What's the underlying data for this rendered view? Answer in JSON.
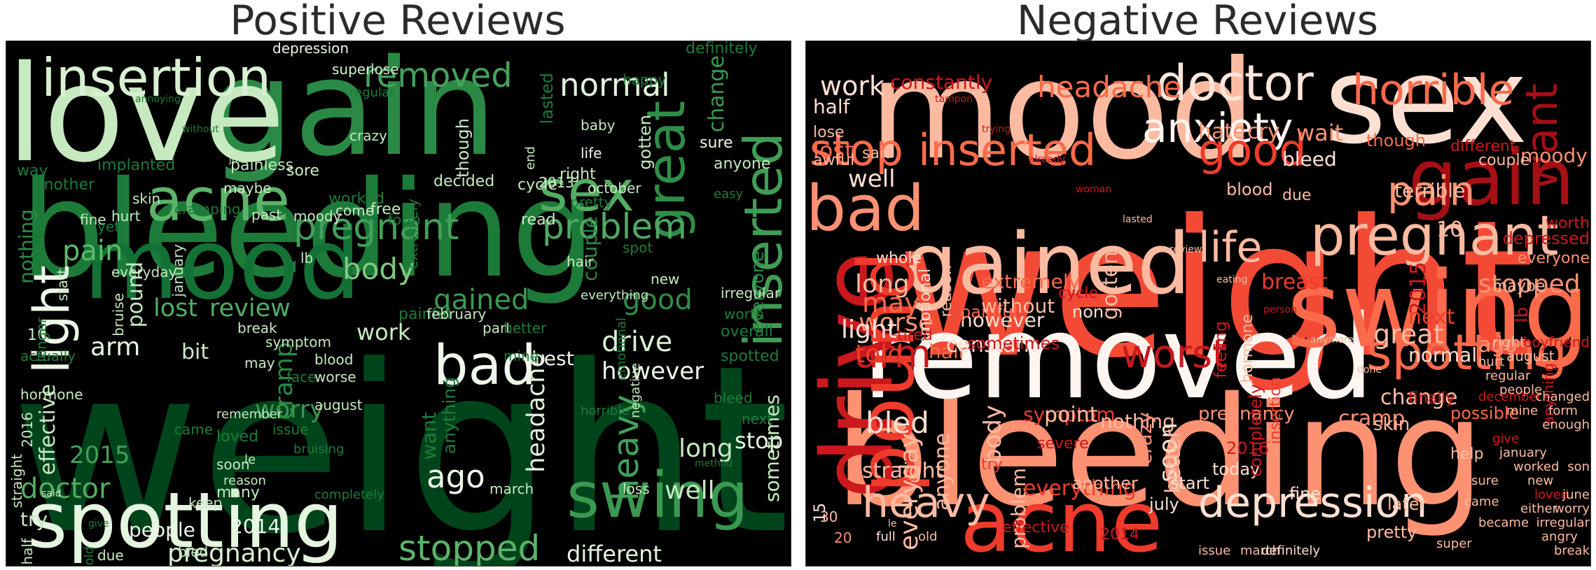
{
  "left": {
    "title": "Positive Reviews",
    "words": [
      {
        "t": "weight",
        "c": "#00441b"
      },
      {
        "t": "bleeding",
        "c": "#1d7b3a"
      },
      {
        "t": "gain",
        "c": "#2a8a45"
      },
      {
        "t": "love",
        "c": "#c7e9c0"
      },
      {
        "t": "mood",
        "c": "#137136"
      },
      {
        "t": "spotting",
        "c": "#e5f5e0"
      },
      {
        "t": "insertion",
        "c": "#d9f0d3"
      },
      {
        "t": "acne",
        "c": "#5cb46a"
      },
      {
        "t": "sex",
        "c": "#52ad63"
      },
      {
        "t": "inserted",
        "c": "#3f9d55"
      },
      {
        "t": "great",
        "c": "#2e8e47"
      },
      {
        "t": "swing",
        "c": "#3a9950"
      },
      {
        "t": "bad",
        "c": "#f0f9ec"
      },
      {
        "t": "pregnant",
        "c": "#41a05a"
      },
      {
        "t": "problem",
        "c": "#4fa862"
      },
      {
        "t": "removed",
        "c": "#45a25c"
      },
      {
        "t": "normal",
        "c": "#e0f3db"
      },
      {
        "t": "light",
        "c": "#edf8e9"
      },
      {
        "t": "body",
        "c": "#7fc97f"
      },
      {
        "t": "pain",
        "c": "#5fb96b"
      },
      {
        "t": "lost",
        "c": "#52ad63"
      },
      {
        "t": "review",
        "c": "#52ad63"
      },
      {
        "t": "gained",
        "c": "#3a9950"
      },
      {
        "t": "good",
        "c": "#2e8e47"
      },
      {
        "t": "arm",
        "c": "#e5f5e0"
      },
      {
        "t": "nothing",
        "c": "#2a8a45"
      },
      {
        "t": "pound",
        "c": "#c7e9c0"
      },
      {
        "t": "bit",
        "c": "#c7e9c0"
      },
      {
        "t": "work",
        "c": "#c7e9c0"
      },
      {
        "t": "worry",
        "c": "#3a9950"
      },
      {
        "t": "cramp",
        "c": "#2a8a45"
      },
      {
        "t": "drive",
        "c": "#d9f0d3"
      },
      {
        "t": "however",
        "c": "#edf8e9"
      },
      {
        "t": "doctor",
        "c": "#52ad63"
      },
      {
        "t": "headache",
        "c": "#e0f3db"
      },
      {
        "t": "heavy",
        "c": "#41a05a"
      },
      {
        "t": "long",
        "c": "#c7e9c0"
      },
      {
        "t": "well",
        "c": "#c7e9c0"
      },
      {
        "t": "stopped",
        "c": "#5cb46a"
      },
      {
        "t": "ago",
        "c": "#edf8e9"
      },
      {
        "t": "pregnancy",
        "c": "#d9f0d3"
      },
      {
        "t": "different",
        "c": "#e5f5e0"
      },
      {
        "t": "2015",
        "c": "#41a05a"
      },
      {
        "t": "effective",
        "c": "#c7e9c0"
      },
      {
        "t": "stop",
        "c": "#e5f5e0"
      },
      {
        "t": "sometimes",
        "c": "#c7e9c0"
      },
      {
        "t": "change",
        "c": "#3a9950"
      },
      {
        "t": "everyone",
        "c": "#2a8a45"
      },
      {
        "t": "couple",
        "c": "#2a8a45"
      },
      {
        "t": "though",
        "c": "#c7e9c0"
      },
      {
        "t": "gotten",
        "c": "#c7e9c0"
      },
      {
        "t": "lasted",
        "c": "#1d7b3a"
      },
      {
        "t": "anything",
        "c": "#1d7b3a"
      },
      {
        "t": "best",
        "c": "#edf8e9"
      },
      {
        "t": "people",
        "c": "#edf8e9"
      },
      {
        "t": "try",
        "c": "#c7e9c0"
      },
      {
        "t": "2014",
        "c": "#edf8e9"
      },
      {
        "t": "want",
        "c": "#1d7b3a"
      },
      {
        "t": "depression",
        "c": "#edf8e9"
      },
      {
        "t": "definitely",
        "c": "#1d7b3a"
      },
      {
        "t": "happy",
        "c": "#1d7b3a"
      },
      {
        "t": "super",
        "c": "#d9f0d3"
      },
      {
        "t": "lose",
        "c": "#c7e9c0"
      },
      {
        "t": "regular",
        "c": "#1d7b3a"
      },
      {
        "t": "crazy",
        "c": "#c7e9c0"
      },
      {
        "t": "baby",
        "c": "#c7e9c0"
      },
      {
        "t": "life",
        "c": "#edf8e9"
      },
      {
        "t": "sure",
        "c": "#edf8e9"
      },
      {
        "t": "anyone",
        "c": "#c7e9c0"
      },
      {
        "t": "end",
        "c": "#c7e9c0"
      },
      {
        "t": "implanted",
        "c": "#1d7b3a"
      },
      {
        "t": "painless",
        "c": "#c7e9c0"
      },
      {
        "t": "sore",
        "c": "#c7e9c0"
      },
      {
        "t": "worked",
        "c": "#1d7b3a"
      },
      {
        "t": "right",
        "c": "#c7e9c0"
      },
      {
        "t": "october",
        "c": "#c7e9c0"
      },
      {
        "t": "pretty",
        "c": "#1d7b3a"
      },
      {
        "t": "2013",
        "c": "#c7e9c0"
      },
      {
        "t": "moody",
        "c": "#c7e9c0"
      },
      {
        "t": "maybe",
        "c": "#c7e9c0"
      },
      {
        "t": "past",
        "c": "#c7e9c0"
      },
      {
        "t": "come",
        "c": "#c7e9c0"
      },
      {
        "t": "free",
        "c": "#c7e9c0"
      },
      {
        "t": "form",
        "c": "#1d7b3a"
      },
      {
        "t": "decided",
        "c": "#c7e9c0"
      },
      {
        "t": "lb",
        "c": "#c7e9c0"
      },
      {
        "t": "cycle",
        "c": "#c7e9c0"
      },
      {
        "t": "read",
        "c": "#c7e9c0"
      },
      {
        "t": "part",
        "c": "#c7e9c0"
      },
      {
        "t": "spot",
        "c": "#1d7b3a"
      },
      {
        "t": "hair",
        "c": "#c7e9c0"
      },
      {
        "t": "new",
        "c": "#c7e9c0"
      },
      {
        "t": "irregular",
        "c": "#c7e9c0"
      },
      {
        "t": "worth",
        "c": "#1d7b3a"
      },
      {
        "t": "overall",
        "c": "#1d7b3a"
      },
      {
        "t": "spotted",
        "c": "#1d7b3a"
      },
      {
        "t": "bleed",
        "c": "#1d7b3a"
      },
      {
        "t": "next",
        "c": "#1d7b3a"
      },
      {
        "t": "loss",
        "c": "#c7e9c0"
      },
      {
        "t": "march",
        "c": "#c7e9c0"
      },
      {
        "t": "keep",
        "c": "#c7e9c0"
      },
      {
        "t": "many",
        "c": "#c7e9c0"
      },
      {
        "t": "soon",
        "c": "#c7e9c0"
      },
      {
        "t": "loved",
        "c": "#1d7b3a"
      },
      {
        "t": "issue",
        "c": "#1d7b3a"
      },
      {
        "t": "august",
        "c": "#c7e9c0"
      },
      {
        "t": "face",
        "c": "#1d7b3a"
      },
      {
        "t": "blood",
        "c": "#c7e9c0"
      },
      {
        "t": "worse",
        "c": "#c7e9c0"
      },
      {
        "t": "may",
        "c": "#c7e9c0"
      },
      {
        "t": "break",
        "c": "#c7e9c0"
      },
      {
        "t": "symptom",
        "c": "#c7e9c0"
      },
      {
        "t": "painful",
        "c": "#1d7b3a"
      },
      {
        "t": "10",
        "c": "#c7e9c0"
      },
      {
        "t": "bled",
        "c": "#c7e9c0"
      },
      {
        "t": "due",
        "c": "#c7e9c0"
      },
      {
        "t": "half",
        "c": "#c7e9c0"
      },
      {
        "t": "straight",
        "c": "#c7e9c0"
      },
      {
        "t": "2016",
        "c": "#c7e9c0"
      },
      {
        "t": "came",
        "c": "#1d7b3a"
      },
      {
        "t": "hormone",
        "c": "#c7e9c0"
      },
      {
        "t": "actually",
        "c": "#1d7b3a"
      },
      {
        "t": "longer",
        "c": "#1d7b3a"
      },
      {
        "t": "way",
        "c": "#1d7b3a"
      },
      {
        "t": "another",
        "c": "#1d7b3a"
      },
      {
        "t": "start",
        "c": "#c7e9c0"
      },
      {
        "t": "fine",
        "c": "#c7e9c0"
      },
      {
        "t": "yet",
        "c": "#1d7b3a"
      },
      {
        "t": "hurt",
        "c": "#c7e9c0"
      },
      {
        "t": "skin",
        "c": "#c7e9c0"
      },
      {
        "t": "cramping",
        "c": "#1d7b3a"
      },
      {
        "t": "january",
        "c": "#c7e9c0"
      },
      {
        "t": "bruise",
        "c": "#c7e9c0"
      },
      {
        "t": "everyday",
        "c": "#c7e9c0"
      },
      {
        "t": "february",
        "c": "#c7e9c0"
      },
      {
        "t": "better",
        "c": "#1d7b3a"
      },
      {
        "t": "mine",
        "c": "#1d7b3a"
      },
      {
        "t": "extremely",
        "c": "#1d7b3a"
      },
      {
        "t": "emotional",
        "c": "#1d7b3a"
      },
      {
        "t": "negative",
        "c": "#c7e9c0"
      },
      {
        "t": "everything",
        "c": "#c7e9c0"
      },
      {
        "t": "remember",
        "c": "#c7e9c0"
      },
      {
        "t": "reason",
        "c": "#c7e9c0"
      },
      {
        "t": "le",
        "c": "#c7e9c0"
      },
      {
        "t": "bruising",
        "c": "#1d7b3a"
      },
      {
        "t": "completely",
        "c": "#1d7b3a"
      },
      {
        "t": "horrible",
        "c": "#1d7b3a"
      },
      {
        "t": "old",
        "c": "#1d7b3a"
      },
      {
        "t": "easy",
        "c": "#1d7b3a"
      },
      {
        "t": "method",
        "c": "#1d7b3a"
      },
      {
        "t": "said",
        "c": "#c7e9c0"
      },
      {
        "t": "give",
        "c": "#1d7b3a"
      },
      {
        "t": "annoying",
        "c": "#1d7b3a"
      },
      {
        "t": "without",
        "c": "#1d7b3a"
      },
      {
        "t": "job",
        "c": "#c7e9c0"
      }
    ]
  },
  "right": {
    "title": "Negative Reviews",
    "words": [
      {
        "t": "weight",
        "c": "#f34a36"
      },
      {
        "t": "bleeding",
        "c": "#fc9272"
      },
      {
        "t": "removed",
        "c": "#fff5f0"
      },
      {
        "t": "mood",
        "c": "#fcbba1"
      },
      {
        "t": "sex",
        "c": "#fee0d2"
      },
      {
        "t": "gained",
        "c": "#fcbba1"
      },
      {
        "t": "swing",
        "c": "#fb6a4a"
      },
      {
        "t": "acne",
        "c": "#ef3b2c"
      },
      {
        "t": "doctor",
        "c": "#fee5d9"
      },
      {
        "t": "anxiety",
        "c": "#fff5f0"
      },
      {
        "t": "horrible",
        "c": "#fb6a4a"
      },
      {
        "t": "gain",
        "c": "#a50f15"
      },
      {
        "t": "pregnant",
        "c": "#fcbba1"
      },
      {
        "t": "bad",
        "c": "#fc9272"
      },
      {
        "t": "stop",
        "c": "#fb6a4a"
      },
      {
        "t": "inserted",
        "c": "#fb6a4a"
      },
      {
        "t": "good",
        "c": "#ef3b2c"
      },
      {
        "t": "pain",
        "c": "#fc9272"
      },
      {
        "t": "drive",
        "c": "#cb181d"
      },
      {
        "t": "pound",
        "c": "#ef3b2c"
      },
      {
        "t": "life",
        "c": "#fcbba1"
      },
      {
        "t": "spotting",
        "c": "#fb6a4a"
      },
      {
        "t": "depression",
        "c": "#fee0d2"
      },
      {
        "t": "heavy",
        "c": "#fcbba1"
      },
      {
        "t": "worst",
        "c": "#cb181d"
      },
      {
        "t": "arm",
        "c": "#cb181d"
      },
      {
        "t": "stopped",
        "c": "#fc9272"
      },
      {
        "t": "great",
        "c": "#fcbba1"
      },
      {
        "t": "headache",
        "c": "#fb6a4a"
      },
      {
        "t": "work",
        "c": "#fee0d2"
      },
      {
        "t": "constantly",
        "c": "#cb181d"
      },
      {
        "t": "half",
        "c": "#fee0d2"
      },
      {
        "t": "lost",
        "c": "#fb6a4a"
      },
      {
        "t": "hate",
        "c": "#fc9272"
      },
      {
        "t": "cry",
        "c": "#fc9272"
      },
      {
        "t": "wait",
        "c": "#fc9272"
      },
      {
        "t": "want",
        "c": "#a50f15"
      },
      {
        "t": "terrible",
        "c": "#fcbba1"
      },
      {
        "t": "bleed",
        "c": "#fee5d9"
      },
      {
        "t": "moody",
        "c": "#fc9272"
      },
      {
        "t": "well",
        "c": "#fee0d2"
      },
      {
        "t": "may",
        "c": "#fb6a4a"
      },
      {
        "t": "long",
        "c": "#fcbba1"
      },
      {
        "t": "worse",
        "c": "#fc9272"
      },
      {
        "t": "light",
        "c": "#fee0d2"
      },
      {
        "t": "told",
        "c": "#ef3b2c"
      },
      {
        "t": "hair",
        "c": "#fb6a4a"
      },
      {
        "t": "constant",
        "c": "#fee0d2"
      },
      {
        "t": "however",
        "c": "#fee0d2"
      },
      {
        "t": "gotten",
        "c": "#fcbba1"
      },
      {
        "t": "painful",
        "c": "#fb6a4a"
      },
      {
        "t": "non",
        "c": "#fee0d2"
      },
      {
        "t": "2015",
        "c": "#cb181d"
      },
      {
        "t": "10",
        "c": "#fcbba1"
      },
      {
        "t": "next",
        "c": "#ef3b2c"
      },
      {
        "t": "normal",
        "c": "#fee0d2"
      },
      {
        "t": "breast",
        "c": "#ef3b2c"
      },
      {
        "t": "ago",
        "c": "#fc9272"
      },
      {
        "t": "bled",
        "c": "#fee0d2"
      },
      {
        "t": "straight",
        "c": "#fcbba1"
      },
      {
        "t": "everyday",
        "c": "#fcbba1"
      },
      {
        "t": "anyone",
        "c": "#fcbba1"
      },
      {
        "t": "body",
        "c": "#fcbba1"
      },
      {
        "t": "symptom",
        "c": "#ef3b2c"
      },
      {
        "t": "point",
        "c": "#fcbba1"
      },
      {
        "t": "problem",
        "c": "#fcbba1"
      },
      {
        "t": "nothing",
        "c": "#fcbba1"
      },
      {
        "t": "crazy",
        "c": "#fc9272"
      },
      {
        "t": "soon",
        "c": "#fee0d2"
      },
      {
        "t": "better",
        "c": "#fcbba1"
      },
      {
        "t": "cramp",
        "c": "#fc9272"
      },
      {
        "t": "change",
        "c": "#fcbba1"
      },
      {
        "t": "everything",
        "c": "#ef3b2c"
      },
      {
        "t": "another",
        "c": "#fcbba1"
      },
      {
        "t": "effective",
        "c": "#cb181d"
      },
      {
        "t": "2014",
        "c": "#cb181d"
      },
      {
        "t": "july",
        "c": "#fee0d2"
      },
      {
        "t": "pretty",
        "c": "#fcbba1"
      },
      {
        "t": "later",
        "c": "#fcbba1"
      },
      {
        "t": "help",
        "c": "#fcbba1"
      },
      {
        "t": "fine",
        "c": "#fee0d2"
      },
      {
        "t": "today",
        "c": "#fee0d2"
      },
      {
        "t": "start",
        "c": "#fee0d2"
      },
      {
        "t": "2016",
        "c": "#cb181d"
      },
      {
        "t": "skin",
        "c": "#fcbba1"
      },
      {
        "t": "finally",
        "c": "#cb181d"
      },
      {
        "t": "possible",
        "c": "#fb6a4a"
      },
      {
        "t": "though",
        "c": "#fb6a4a"
      },
      {
        "t": "due",
        "c": "#fcbba1"
      },
      {
        "t": "blood",
        "c": "#fcbba1"
      },
      {
        "t": "different",
        "c": "#cb181d"
      },
      {
        "t": "couple",
        "c": "#fcbba1"
      },
      {
        "t": "pregnancy",
        "c": "#fc9272"
      },
      {
        "t": "completely",
        "c": "#cb181d"
      },
      {
        "t": "insertion",
        "c": "#ef3b2c"
      },
      {
        "t": "feeling",
        "c": "#cb181d"
      },
      {
        "t": "hormone",
        "c": "#fcbba1"
      },
      {
        "t": "sometimes",
        "c": "#cb181d"
      },
      {
        "t": "reason",
        "c": "#fcbba1"
      },
      {
        "t": "emotional",
        "c": "#fee0d2"
      },
      {
        "t": "extremely",
        "c": "#fb6a4a"
      },
      {
        "t": "without",
        "c": "#fcbba1"
      },
      {
        "t": "whole",
        "c": "#fee0d2"
      },
      {
        "t": "said",
        "c": "#fcbba1"
      },
      {
        "t": "awful",
        "c": "#fcbba1"
      },
      {
        "t": "lose",
        "c": "#fcbba1"
      },
      {
        "t": "severe",
        "c": "#cb181d"
      },
      {
        "t": "tired",
        "c": "#cb181d"
      },
      {
        "t": "cycle",
        "c": "#cb181d"
      },
      {
        "t": "try",
        "c": "#ef3b2c"
      },
      {
        "t": "15",
        "c": "#fee0d2"
      },
      {
        "t": "30",
        "c": "#fcbba1"
      },
      {
        "t": "20",
        "c": "#fc9272"
      },
      {
        "t": "full",
        "c": "#fee0d2"
      },
      {
        "t": "old",
        "c": "#fcbba1"
      },
      {
        "t": "issue",
        "c": "#fcbba1"
      },
      {
        "t": "march",
        "c": "#fcbba1"
      },
      {
        "t": "definitely",
        "c": "#fee0d2"
      },
      {
        "t": "maybe",
        "c": "#fcbba1"
      },
      {
        "t": "depressed",
        "c": "#cb181d"
      },
      {
        "t": "worth",
        "c": "#cb181d"
      },
      {
        "t": "everyone",
        "c": "#fc9272"
      },
      {
        "t": "lb",
        "c": "#cb181d"
      },
      {
        "t": "boyfriend",
        "c": "#cb181d"
      },
      {
        "t": "anything",
        "c": "#cb181d"
      },
      {
        "t": "right",
        "c": "#fcbba1"
      },
      {
        "t": "august",
        "c": "#fcbba1"
      },
      {
        "t": "hurt",
        "c": "#fcbba1"
      },
      {
        "t": "regular",
        "c": "#fcbba1"
      },
      {
        "t": "people",
        "c": "#fcbba1"
      },
      {
        "t": "form",
        "c": "#fcbba1"
      },
      {
        "t": "enough",
        "c": "#fcbba1"
      },
      {
        "t": "december",
        "c": "#cb181d"
      },
      {
        "t": "changed",
        "c": "#fcbba1"
      },
      {
        "t": "give",
        "c": "#cb181d"
      },
      {
        "t": "mine",
        "c": "#fcbba1"
      },
      {
        "t": "january",
        "c": "#fcbba1"
      },
      {
        "t": "worked",
        "c": "#fcbba1"
      },
      {
        "t": "new",
        "c": "#fcbba1"
      },
      {
        "t": "loved",
        "c": "#cb181d"
      },
      {
        "t": "either",
        "c": "#fcbba1"
      },
      {
        "t": "irregular",
        "c": "#fcbba1"
      },
      {
        "t": "angry",
        "c": "#fcbba1"
      },
      {
        "t": "break",
        "c": "#fcbba1"
      },
      {
        "t": "son",
        "c": "#fcbba1"
      },
      {
        "t": "june",
        "c": "#fcbba1"
      },
      {
        "t": "worry",
        "c": "#fcbba1"
      },
      {
        "t": "sure",
        "c": "#fcbba1"
      },
      {
        "t": "came",
        "c": "#fcbba1"
      },
      {
        "t": "became",
        "c": "#fcbba1"
      },
      {
        "t": "super",
        "c": "#fcbba1"
      },
      {
        "t": "le",
        "c": "#fcbba1"
      },
      {
        "t": "tampon",
        "c": "#cb181d"
      },
      {
        "t": "trying",
        "c": "#cb181d"
      },
      {
        "t": "already",
        "c": "#cb181d"
      },
      {
        "t": "woman",
        "c": "#cb181d"
      },
      {
        "t": "lasted",
        "c": "#fcbba1"
      },
      {
        "t": "review",
        "c": "#fcbba1"
      },
      {
        "t": "eating",
        "c": "#fcbba1"
      },
      {
        "t": "person",
        "c": "#cb181d"
      },
      {
        "t": "anymore",
        "c": "#fcbba1"
      },
      {
        "t": "done",
        "c": "#fcbba1"
      }
    ]
  }
}
